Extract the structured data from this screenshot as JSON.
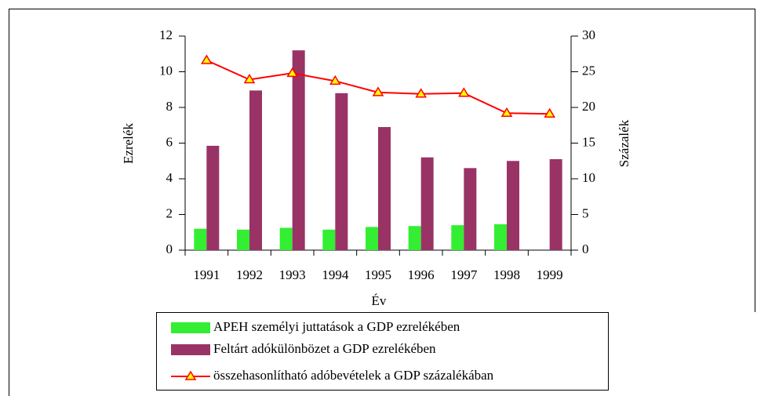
{
  "chart_data": {
    "type": "bar",
    "xlabel": "Év",
    "ylabel": "Ezrelék",
    "y2label": "Százalék",
    "categories": [
      "1991",
      "1992",
      "1993",
      "1994",
      "1995",
      "1996",
      "1997",
      "1998",
      "1999"
    ],
    "series": [
      {
        "name": "APEH személyi juttatások a GDP ezrelékében",
        "color": "#33ee33",
        "values": [
          1.2,
          1.15,
          1.25,
          1.15,
          1.3,
          1.35,
          1.4,
          1.45,
          null
        ]
      },
      {
        "name": "Feltárt adókülönbözet a GDP ezrelékében",
        "color": "#993366",
        "values": [
          5.85,
          8.95,
          11.2,
          8.8,
          6.9,
          5.2,
          4.6,
          5.0,
          5.1
        ]
      },
      {
        "name": "összehasonlítható adóbevételek a GDP százalékában",
        "color": "#ff0000",
        "marker_color": "#ffff00",
        "type": "line",
        "axis": "y2",
        "values": [
          26.6,
          23.9,
          24.8,
          23.7,
          22.1,
          21.9,
          22.0,
          19.2,
          19.1
        ]
      }
    ],
    "ylim": [
      0,
      12
    ],
    "yticks": [
      0,
      2,
      4,
      6,
      8,
      10,
      12
    ],
    "y2lim": [
      0,
      30
    ],
    "y2ticks": [
      0,
      5,
      10,
      15,
      20,
      25,
      30
    ]
  }
}
